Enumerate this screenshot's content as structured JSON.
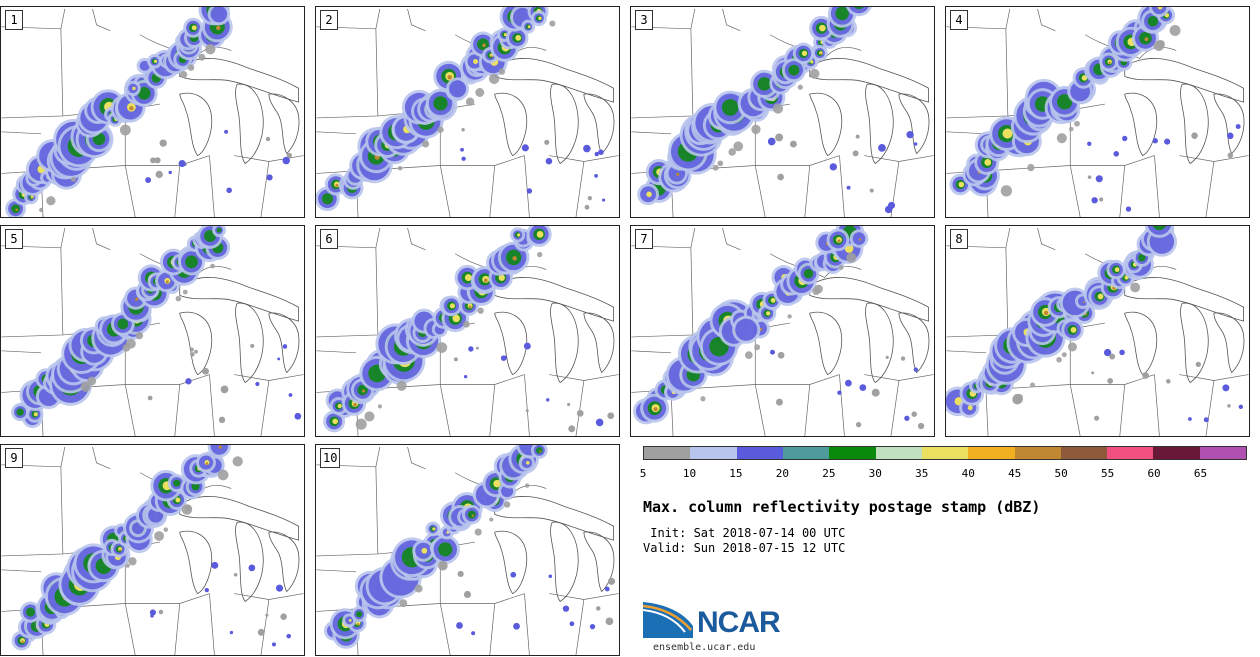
{
  "panels": [
    {
      "label": "1"
    },
    {
      "label": "2"
    },
    {
      "label": "3"
    },
    {
      "label": "4"
    },
    {
      "label": "5"
    },
    {
      "label": "6"
    },
    {
      "label": "7"
    },
    {
      "label": "8"
    },
    {
      "label": "9"
    },
    {
      "label": "10"
    }
  ],
  "colorbar": {
    "colors": [
      "#a0a0a0",
      "#b8c4ec",
      "#5a5adc",
      "#4f9a9a",
      "#0a8a0a",
      "#c0e0c0",
      "#ece060",
      "#f0b020",
      "#c08830",
      "#8f5a3c",
      "#f05080",
      "#6a1838",
      "#b050b0"
    ],
    "ticks": [
      "5",
      "10",
      "15",
      "20",
      "25",
      "30",
      "35",
      "40",
      "45",
      "50",
      "55",
      "60",
      "65"
    ]
  },
  "title": "Max. column reflectivity postage stamp (dBZ)",
  "init_line": " Init: Sat 2018-07-14 00 UTC",
  "valid_line": "Valid: Sun 2018-07-15 12 UTC",
  "logo": {
    "text": "NCAR",
    "url": "ensemble.ucar.edu"
  }
}
